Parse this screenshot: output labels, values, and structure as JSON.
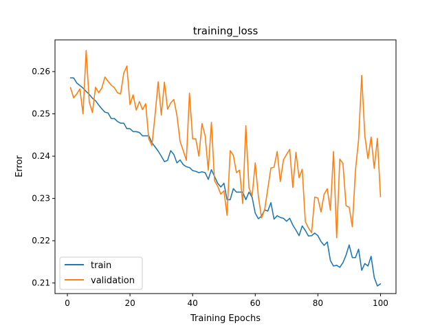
{
  "chart_data": {
    "type": "line",
    "title": "training_loss",
    "xlabel": "Training Epochs",
    "ylabel": "Error",
    "xlim": [
      -3.95,
      104.95
    ],
    "ylim": [
      0.2075,
      0.2675
    ],
    "xticks": [
      0,
      20,
      40,
      60,
      80,
      100
    ],
    "yticks": [
      0.21,
      0.22,
      0.23,
      0.24,
      0.25,
      0.26
    ],
    "ytick_labels": [
      "0.21",
      "0.22",
      "0.23",
      "0.24",
      "0.25",
      "0.26"
    ],
    "grid": false,
    "legend_position": "lower-left",
    "x": [
      1,
      2,
      3,
      4,
      5,
      6,
      7,
      8,
      9,
      10,
      11,
      12,
      13,
      14,
      15,
      16,
      17,
      18,
      19,
      20,
      21,
      22,
      23,
      24,
      25,
      26,
      27,
      28,
      29,
      30,
      31,
      32,
      33,
      34,
      35,
      36,
      37,
      38,
      39,
      40,
      41,
      42,
      43,
      44,
      45,
      46,
      47,
      48,
      49,
      50,
      51,
      52,
      53,
      54,
      55,
      56,
      57,
      58,
      59,
      60,
      61,
      62,
      63,
      64,
      65,
      66,
      67,
      68,
      69,
      70,
      71,
      72,
      73,
      74,
      75,
      76,
      77,
      78,
      79,
      80,
      81,
      82,
      83,
      84,
      85,
      86,
      87,
      88,
      89,
      90,
      91,
      92,
      93,
      94,
      95,
      96,
      97,
      98,
      99,
      100
    ],
    "series": [
      {
        "name": "train",
        "color": "#1f77b4",
        "values": [
          0.2585,
          0.2585,
          0.2573,
          0.2567,
          0.2561,
          0.2553,
          0.2546,
          0.2537,
          0.2531,
          0.2521,
          0.2512,
          0.2504,
          0.2502,
          0.2489,
          0.2489,
          0.2482,
          0.2478,
          0.2478,
          0.2465,
          0.2465,
          0.2458,
          0.2458,
          0.2456,
          0.2448,
          0.2448,
          0.2448,
          0.2432,
          0.2422,
          0.2412,
          0.24,
          0.2387,
          0.239,
          0.2413,
          0.2404,
          0.2384,
          0.2391,
          0.238,
          0.2375,
          0.2373,
          0.2366,
          0.2364,
          0.2361,
          0.2363,
          0.2361,
          0.2345,
          0.2368,
          0.2352,
          0.2336,
          0.2327,
          0.2336,
          0.2297,
          0.2297,
          0.2323,
          0.2315,
          0.2315,
          0.2315,
          0.2297,
          0.2315,
          0.2303,
          0.2265,
          0.2252,
          0.2258,
          0.2273,
          0.227,
          0.229,
          0.2251,
          0.2259,
          0.2255,
          0.2253,
          0.2246,
          0.2253,
          0.2237,
          0.2225,
          0.2212,
          0.2235,
          0.2224,
          0.2211,
          0.2212,
          0.2218,
          0.2212,
          0.2198,
          0.2189,
          0.2197,
          0.2153,
          0.214,
          0.2142,
          0.2137,
          0.2148,
          0.2166,
          0.219,
          0.216,
          0.216,
          0.218,
          0.213,
          0.2146,
          0.214,
          0.2163,
          0.2113,
          0.2093,
          0.2098
        ]
      },
      {
        "name": "validation",
        "color": "#ff7f0e",
        "values": [
          0.2562,
          0.2538,
          0.2547,
          0.2559,
          0.25,
          0.265,
          0.2528,
          0.2503,
          0.2563,
          0.255,
          0.2561,
          0.2587,
          0.2577,
          0.2568,
          0.2562,
          0.255,
          0.2547,
          0.2596,
          0.2613,
          0.2522,
          0.2545,
          0.2509,
          0.2529,
          0.251,
          0.2524,
          0.2441,
          0.2425,
          0.2497,
          0.2576,
          0.2497,
          0.2575,
          0.2511,
          0.2526,
          0.2534,
          0.2496,
          0.2435,
          0.2413,
          0.239,
          0.2549,
          0.2441,
          0.2441,
          0.24,
          0.2477,
          0.2448,
          0.2367,
          0.248,
          0.2342,
          0.2329,
          0.231,
          0.2318,
          0.226,
          0.2413,
          0.2402,
          0.2361,
          0.2367,
          0.2288,
          0.2472,
          0.2325,
          0.2306,
          0.2384,
          0.2305,
          0.2254,
          0.2273,
          0.2323,
          0.2372,
          0.2374,
          0.2411,
          0.234,
          0.2391,
          0.2404,
          0.2416,
          0.2326,
          0.2409,
          0.2349,
          0.2369,
          0.2245,
          0.223,
          0.2219,
          0.2303,
          0.2301,
          0.2268,
          0.231,
          0.2323,
          0.2272,
          0.2411,
          0.2207,
          0.2393,
          0.2383,
          0.2283,
          0.2279,
          0.2233,
          0.2366,
          0.2439,
          0.2591,
          0.2448,
          0.2394,
          0.2445,
          0.2371,
          0.2442,
          0.2304
        ]
      }
    ]
  }
}
